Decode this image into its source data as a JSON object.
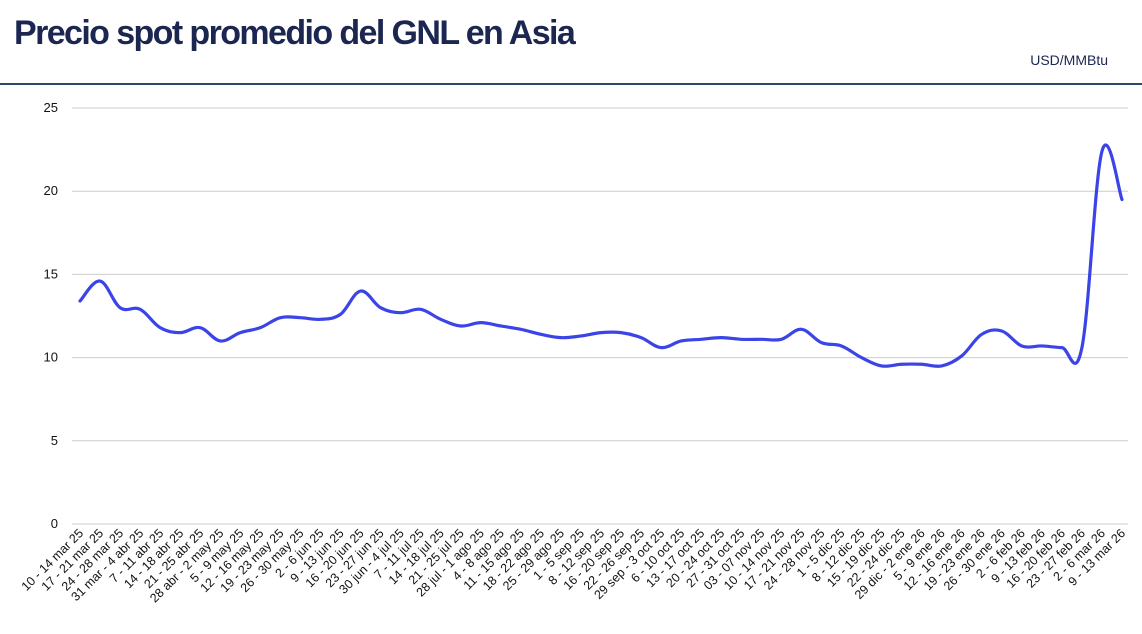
{
  "header": {
    "title": "Precio spot promedio del GNL en Asia",
    "unit": "USD/MMBtu"
  },
  "colors": {
    "title": "#1b2651",
    "rule": "#31456e",
    "series": "#3b44e6",
    "grid": "#cccccc"
  },
  "chart_data": {
    "type": "line",
    "title": "Precio spot promedio del GNL en Asia",
    "ylabel": "USD/MMBtu",
    "ylim": [
      0,
      25
    ],
    "yticks": [
      0,
      5,
      10,
      15,
      20,
      25
    ],
    "grid": true,
    "categories": [
      "10 - 14 mar 25",
      "17 - 21 mar 25",
      "24 - 28 mar 25",
      "31 mar - 4 abr 25",
      "7 - 11 abr 25",
      "14 - 18 abr 25",
      "21 - 25 abr 25",
      "28 abr - 2 may 25",
      "5 - 9 may 25",
      "12 - 16 may 25",
      "19 - 23 may 25",
      "26 - 30 may 25",
      "2 - 6 jun 25",
      "9 - 13 jun 25",
      "16 - 20 jun 25",
      "23 - 27 jun 25",
      "30 jun - 4 jul 25",
      "7 - 11 jul 25",
      "14 - 18 jul 25",
      "21 - 25 jul 25",
      "28 jul - 1 ago 25",
      "4 - 8 ago 25",
      "11 - 15 ago 25",
      "18 - 22 ago 25",
      "25 - 29 ago 25",
      "1 - 5 sep 25",
      "8 - 12 sep 25",
      "16 - 20 sep 25",
      "22 - 26 sep 25",
      "29 sep - 3 oct 25",
      "6 - 10 oct 25",
      "13 - 17 oct 25",
      "20 - 24 oct 25",
      "27 - 31 oct 25",
      "03 - 07 nov 25",
      "10 - 14 nov 25",
      "17 - 21 nov 25",
      "24 - 28 nov 25",
      "1 - 5 dic 25",
      "8 - 12 dic 25",
      "15 - 19 dic 25",
      "22 - 24 dic 25",
      "29 dic - 2 ene 26",
      "5 - 9 ene 26",
      "12 - 16 ene 26",
      "19 - 23 ene 26",
      "26 - 30 ene 26",
      "2 - 6 feb 26",
      "9 - 13 feb 26",
      "16 - 20 feb 26",
      "23 - 27 feb 26",
      "2 - 6 mar 26",
      "9 - 13 mar 26"
    ],
    "series": [
      {
        "values": [
          13.4,
          14.6,
          13.0,
          12.9,
          11.8,
          11.5,
          11.8,
          11.0,
          11.5,
          11.8,
          12.4,
          12.4,
          12.3,
          12.6,
          14.0,
          13.0,
          12.7,
          12.9,
          12.3,
          11.9,
          12.1,
          11.9,
          11.7,
          11.4,
          11.2,
          11.3,
          11.5,
          11.5,
          11.2,
          10.6,
          11.0,
          11.1,
          11.2,
          11.1,
          11.1,
          11.1,
          11.7,
          10.9,
          10.7,
          10.0,
          9.5,
          9.6,
          9.6,
          9.5,
          10.1,
          11.4,
          11.6,
          10.7,
          10.7,
          10.6,
          10.6,
          22.4,
          19.5
        ]
      }
    ]
  }
}
